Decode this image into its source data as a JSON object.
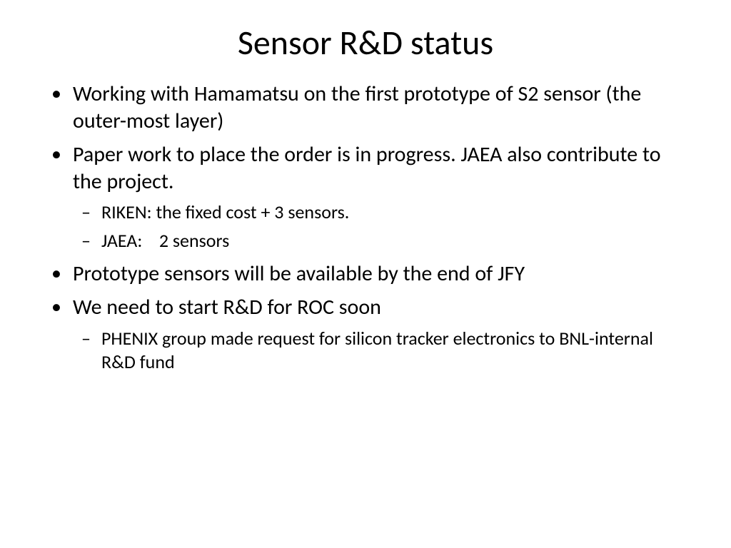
{
  "slide": {
    "title": "Sensor R&D status",
    "title_fontsize": 48,
    "body_fontsize": 30,
    "sub_fontsize": 26,
    "background_color": "#ffffff",
    "text_color": "#000000",
    "bullets": [
      {
        "text": "Working with Hamamatsu on the first prototype of S2 sensor (the outer-most layer)",
        "sub": []
      },
      {
        "text": "Paper work to place the order is in progress. JAEA also contribute to the project.",
        "sub": [
          "RIKEN: the fixed cost + 3 sensors.",
          "JAEA:    2 sensors"
        ]
      },
      {
        "text": "Prototype sensors will be available by the end of JFY",
        "sub": []
      },
      {
        "text": "We need to start R&D for ROC soon",
        "sub": [
          "PHENIX group made request for silicon tracker electronics to BNL-internal R&D fund"
        ]
      }
    ]
  }
}
